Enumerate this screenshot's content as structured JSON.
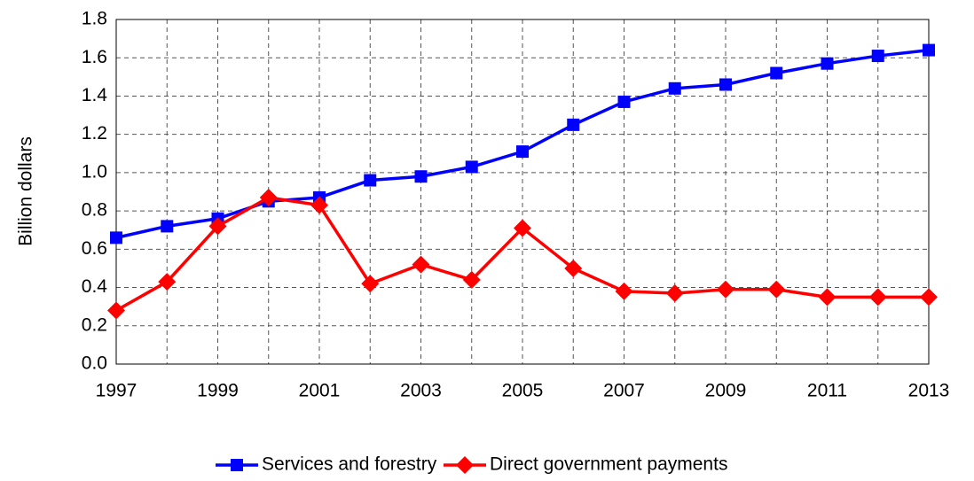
{
  "chart_data": {
    "type": "line",
    "y_label": "Billion dollars",
    "x": [
      1997,
      1998,
      1999,
      2000,
      2001,
      2002,
      2003,
      2004,
      2005,
      2006,
      2007,
      2008,
      2009,
      2010,
      2011,
      2012,
      2013
    ],
    "series": [
      {
        "name": "Services and forestry",
        "color": "#0000ff",
        "marker": "square",
        "values": [
          0.66,
          0.72,
          0.76,
          0.85,
          0.87,
          0.96,
          0.98,
          1.03,
          1.11,
          1.25,
          1.37,
          1.44,
          1.46,
          1.52,
          1.57,
          1.61,
          1.64
        ]
      },
      {
        "name": "Direct government payments",
        "color": "#ff0000",
        "marker": "diamond",
        "values": [
          0.28,
          0.43,
          0.72,
          0.87,
          0.83,
          0.42,
          0.52,
          0.44,
          0.71,
          0.5,
          0.38,
          0.37,
          0.39,
          0.39,
          0.35,
          0.35,
          0.35
        ]
      }
    ],
    "xlim": [
      1997,
      2013
    ],
    "xticks": [
      1997,
      1999,
      2001,
      2003,
      2005,
      2007,
      2009,
      2011,
      2013
    ],
    "ylim": [
      0,
      1.8
    ],
    "yticks": [
      {
        "value": 0,
        "label": "0.0"
      },
      0.2,
      0.4,
      0.6,
      0.8,
      {
        "value": 1,
        "label": "1.0"
      },
      1.2,
      1.4,
      1.6,
      1.8
    ],
    "grid": true,
    "legend": "bottom"
  }
}
